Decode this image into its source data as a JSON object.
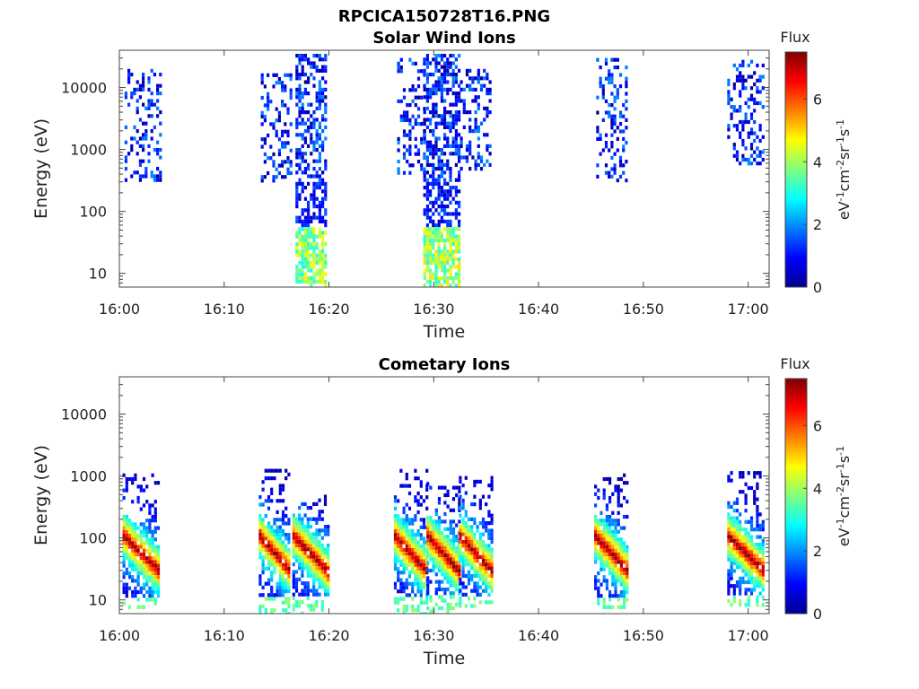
{
  "figure_title": "RPCICA150728T16.PNG",
  "chart_data": [
    {
      "type": "heatmap",
      "title": "Solar Wind Ions",
      "xlabel": "Time",
      "ylabel": "Energy (eV)",
      "x_ticks": [
        "16:00",
        "16:10",
        "16:20",
        "16:30",
        "16:40",
        "16:50",
        "17:00"
      ],
      "xlim_minutes": [
        0,
        62
      ],
      "y_scale": "log",
      "y_ticks": [
        10,
        100,
        1000,
        10000
      ],
      "y_tick_labels": [
        "10",
        "100",
        "1000",
        "10000"
      ],
      "ylim": [
        6,
        40000
      ],
      "colorbar": {
        "label": "Flux",
        "unit": "eV-1cm-2sr-1s-1",
        "ticks": [
          0,
          2,
          4,
          6
        ],
        "range": [
          0,
          7.5
        ],
        "colormap": "jet"
      },
      "bursts": [
        {
          "start_minute": 0.5,
          "end_minute": 4.0,
          "energy_range_eV": [
            300,
            20000
          ],
          "peak_flux": 2.5
        },
        {
          "start_minute": 13.5,
          "end_minute": 16.5,
          "energy_range_eV": [
            300,
            17000
          ],
          "peak_flux": 2.2
        },
        {
          "start_minute": 16.8,
          "end_minute": 19.8,
          "energy_range_eV": [
            6,
            35000
          ],
          "peak_flux": 4.8
        },
        {
          "start_minute": 26.5,
          "end_minute": 29.0,
          "energy_range_eV": [
            400,
            30000
          ],
          "peak_flux": 2.0
        },
        {
          "start_minute": 29.0,
          "end_minute": 32.5,
          "energy_range_eV": [
            6,
            35000
          ],
          "peak_flux": 5.0
        },
        {
          "start_minute": 32.5,
          "end_minute": 35.5,
          "energy_range_eV": [
            500,
            20000
          ],
          "peak_flux": 2.2
        },
        {
          "start_minute": 45.5,
          "end_minute": 48.5,
          "energy_range_eV": [
            300,
            30000
          ],
          "peak_flux": 2.4
        },
        {
          "start_minute": 58.0,
          "end_minute": 61.5,
          "energy_range_eV": [
            600,
            28000
          ],
          "peak_flux": 2.5
        }
      ]
    },
    {
      "type": "heatmap",
      "title": "Cometary Ions",
      "xlabel": "Time",
      "ylabel": "Energy (eV)",
      "x_ticks": [
        "16:00",
        "16:10",
        "16:20",
        "16:30",
        "16:40",
        "16:50",
        "17:00"
      ],
      "xlim_minutes": [
        0,
        62
      ],
      "y_scale": "log",
      "y_ticks": [
        10,
        100,
        1000,
        10000
      ],
      "y_tick_labels": [
        "10",
        "100",
        "1000",
        "10000"
      ],
      "ylim": [
        6,
        40000
      ],
      "colorbar": {
        "label": "Flux",
        "unit": "eV-1cm-2sr-1s-1",
        "ticks": [
          0,
          2,
          4,
          6
        ],
        "range": [
          0,
          7.5
        ],
        "colormap": "jet"
      },
      "bursts": [
        {
          "start_minute": 0.3,
          "end_minute": 3.8,
          "energy_range_eV": [
            8,
            1100
          ],
          "core_energy_eV": 30,
          "peak_flux": 7.2
        },
        {
          "start_minute": 13.3,
          "end_minute": 16.3,
          "energy_range_eV": [
            6,
            1500
          ],
          "core_energy_eV": 30,
          "peak_flux": 7.2
        },
        {
          "start_minute": 16.5,
          "end_minute": 19.8,
          "energy_range_eV": [
            6,
            500
          ],
          "core_energy_eV": 30,
          "peak_flux": 7.2
        },
        {
          "start_minute": 26.2,
          "end_minute": 29.3,
          "energy_range_eV": [
            6,
            1300
          ],
          "core_energy_eV": 30,
          "peak_flux": 7.3
        },
        {
          "start_minute": 29.3,
          "end_minute": 32.4,
          "energy_range_eV": [
            6,
            800
          ],
          "core_energy_eV": 30,
          "peak_flux": 7.3
        },
        {
          "start_minute": 32.4,
          "end_minute": 35.5,
          "energy_range_eV": [
            8,
            1000
          ],
          "core_energy_eV": 30,
          "peak_flux": 7.2
        },
        {
          "start_minute": 45.3,
          "end_minute": 48.5,
          "energy_range_eV": [
            8,
            1100
          ],
          "core_energy_eV": 30,
          "peak_flux": 7.3
        },
        {
          "start_minute": 58.0,
          "end_minute": 61.5,
          "energy_range_eV": [
            8,
            1200
          ],
          "core_energy_eV": 30,
          "peak_flux": 7.3
        }
      ]
    }
  ]
}
